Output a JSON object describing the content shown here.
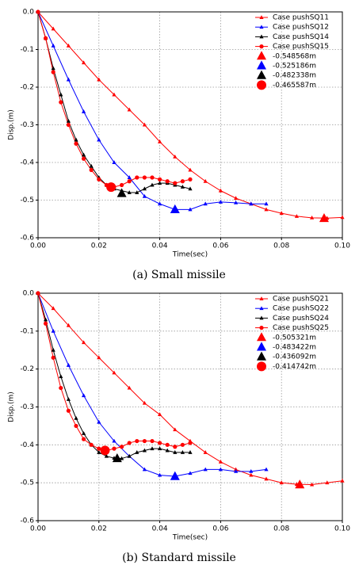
{
  "chart_data": [
    {
      "type": "line",
      "caption": "(a) Small missile",
      "xlabel": "Time(sec)",
      "ylabel": "Disp.(m)",
      "xlim": [
        0,
        0.1
      ],
      "ylim": [
        -0.6,
        0
      ],
      "xticks": [
        {
          "value": 0,
          "label": "0.00"
        },
        0.02,
        0.04,
        0.06,
        0.08,
        {
          "value": 0.1,
          "label": "0.10"
        }
      ],
      "yticks": [
        -0.6,
        -0.5,
        -0.4,
        -0.3,
        -0.2,
        -0.1,
        {
          "value": 0,
          "label": "0.0"
        }
      ],
      "grid": true,
      "legend": "upper right",
      "series": [
        {
          "name": "Case pushSQ11",
          "color": "#ff0000",
          "marker": "triangle",
          "x": [
            0,
            0.005,
            0.01,
            0.015,
            0.02,
            0.025,
            0.03,
            0.035,
            0.04,
            0.045,
            0.05,
            0.055,
            0.06,
            0.065,
            0.07,
            0.075,
            0.08,
            0.085,
            0.09,
            0.095,
            0.1
          ],
          "values": [
            0,
            -0.045,
            -0.09,
            -0.135,
            -0.18,
            -0.22,
            -0.26,
            -0.3,
            -0.345,
            -0.385,
            -0.42,
            -0.45,
            -0.475,
            -0.495,
            -0.51,
            -0.525,
            -0.535,
            -0.543,
            -0.547,
            -0.548,
            -0.546
          ]
        },
        {
          "name": "Case pushSQ12",
          "color": "#0000ff",
          "marker": "triangle",
          "x": [
            0,
            0.005,
            0.01,
            0.015,
            0.02,
            0.025,
            0.03,
            0.035,
            0.04,
            0.045,
            0.05,
            0.055,
            0.06,
            0.065,
            0.07,
            0.075
          ],
          "values": [
            0,
            -0.09,
            -0.18,
            -0.265,
            -0.34,
            -0.4,
            -0.44,
            -0.49,
            -0.51,
            -0.525,
            -0.525,
            -0.51,
            -0.505,
            -0.507,
            -0.51,
            -0.51
          ]
        },
        {
          "name": "Case pushSQ14",
          "color": "#000000",
          "marker": "triangle",
          "x": [
            0,
            0.0025,
            0.005,
            0.0075,
            0.01,
            0.0125,
            0.015,
            0.0175,
            0.02,
            0.0225,
            0.025,
            0.0275,
            0.03,
            0.0325,
            0.035,
            0.0375,
            0.04,
            0.0425,
            0.045,
            0.0475,
            0.05
          ],
          "values": [
            0,
            -0.07,
            -0.15,
            -0.22,
            -0.29,
            -0.34,
            -0.38,
            -0.41,
            -0.44,
            -0.46,
            -0.47,
            -0.475,
            -0.48,
            -0.48,
            -0.47,
            -0.46,
            -0.455,
            -0.455,
            -0.46,
            -0.465,
            -0.47
          ]
        },
        {
          "name": "Case pushSQ15",
          "color": "#ff0000",
          "marker": "circle",
          "x": [
            0,
            0.0025,
            0.005,
            0.0075,
            0.01,
            0.0125,
            0.015,
            0.0175,
            0.02,
            0.0225,
            0.025,
            0.0275,
            0.03,
            0.0325,
            0.035,
            0.0375,
            0.04,
            0.0425,
            0.045,
            0.0475,
            0.05
          ],
          "values": [
            0,
            -0.07,
            -0.16,
            -0.24,
            -0.3,
            -0.35,
            -0.39,
            -0.42,
            -0.445,
            -0.46,
            -0.465,
            -0.46,
            -0.45,
            -0.44,
            -0.44,
            -0.44,
            -0.445,
            -0.45,
            -0.455,
            -0.45,
            -0.445
          ]
        },
        {
          "name": "-0.548568m",
          "color": "#ff0000",
          "marker": "triangle",
          "linestyle": "none",
          "x": [
            0.094
          ],
          "values": [
            -0.548568
          ]
        },
        {
          "name": "-0.525186m",
          "color": "#0000ff",
          "marker": "triangle",
          "linestyle": "none",
          "x": [
            0.045
          ],
          "values": [
            -0.525186
          ]
        },
        {
          "name": "-0.482338m",
          "color": "#000000",
          "marker": "triangle",
          "linestyle": "none",
          "x": [
            0.0275
          ],
          "values": [
            -0.482338
          ]
        },
        {
          "name": "-0.465587m",
          "color": "#ff0000",
          "marker": "circle",
          "linestyle": "none",
          "x": [
            0.024
          ],
          "values": [
            -0.465587
          ]
        }
      ]
    },
    {
      "type": "line",
      "caption": "(b) Standard missile",
      "xlabel": "Time(sec)",
      "ylabel": "Disp.(m)",
      "xlim": [
        0,
        0.1
      ],
      "ylim": [
        -0.6,
        0
      ],
      "xticks": [
        {
          "value": 0,
          "label": "0.00"
        },
        0.02,
        0.04,
        0.06,
        0.08,
        {
          "value": 0.1,
          "label": "0.10"
        }
      ],
      "yticks": [
        -0.6,
        -0.5,
        -0.4,
        -0.3,
        -0.2,
        -0.1,
        {
          "value": 0,
          "label": "0.0"
        }
      ],
      "grid": true,
      "legend": "upper right",
      "series": [
        {
          "name": "Case pushSQ21",
          "color": "#ff0000",
          "marker": "triangle",
          "x": [
            0,
            0.005,
            0.01,
            0.015,
            0.02,
            0.025,
            0.03,
            0.035,
            0.04,
            0.045,
            0.05,
            0.055,
            0.06,
            0.065,
            0.07,
            0.075,
            0.08,
            0.085,
            0.09,
            0.095,
            0.1
          ],
          "values": [
            0,
            -0.04,
            -0.085,
            -0.13,
            -0.17,
            -0.21,
            -0.25,
            -0.29,
            -0.32,
            -0.36,
            -0.39,
            -0.42,
            -0.445,
            -0.465,
            -0.48,
            -0.49,
            -0.5,
            -0.504,
            -0.505,
            -0.5,
            -0.495
          ]
        },
        {
          "name": "Case pushSQ22",
          "color": "#0000ff",
          "marker": "triangle",
          "x": [
            0,
            0.005,
            0.01,
            0.015,
            0.02,
            0.025,
            0.03,
            0.035,
            0.04,
            0.045,
            0.05,
            0.055,
            0.06,
            0.065,
            0.07,
            0.075
          ],
          "values": [
            0,
            -0.1,
            -0.19,
            -0.27,
            -0.34,
            -0.39,
            -0.43,
            -0.465,
            -0.48,
            -0.483,
            -0.475,
            -0.465,
            -0.465,
            -0.47,
            -0.47,
            -0.465
          ]
        },
        {
          "name": "Case pushSQ24",
          "color": "#000000",
          "marker": "triangle",
          "x": [
            0,
            0.0025,
            0.005,
            0.0075,
            0.01,
            0.0125,
            0.015,
            0.0175,
            0.02,
            0.0225,
            0.025,
            0.0275,
            0.03,
            0.0325,
            0.035,
            0.0375,
            0.04,
            0.0425,
            0.045,
            0.0475,
            0.05
          ],
          "values": [
            0,
            -0.07,
            -0.15,
            -0.22,
            -0.28,
            -0.33,
            -0.37,
            -0.4,
            -0.42,
            -0.43,
            -0.435,
            -0.436,
            -0.43,
            -0.42,
            -0.415,
            -0.41,
            -0.41,
            -0.415,
            -0.42,
            -0.42,
            -0.42
          ]
        },
        {
          "name": "Case pushSQ25",
          "color": "#ff0000",
          "marker": "circle",
          "x": [
            0,
            0.0025,
            0.005,
            0.0075,
            0.01,
            0.0125,
            0.015,
            0.0175,
            0.02,
            0.0225,
            0.025,
            0.0275,
            0.03,
            0.0325,
            0.035,
            0.0375,
            0.04,
            0.0425,
            0.045,
            0.0475,
            0.05
          ],
          "values": [
            0,
            -0.08,
            -0.17,
            -0.25,
            -0.31,
            -0.35,
            -0.385,
            -0.4,
            -0.41,
            -0.415,
            -0.41,
            -0.405,
            -0.395,
            -0.39,
            -0.39,
            -0.39,
            -0.395,
            -0.4,
            -0.405,
            -0.4,
            -0.395
          ]
        },
        {
          "name": "-0.505321m",
          "color": "#ff0000",
          "marker": "triangle",
          "linestyle": "none",
          "x": [
            0.086
          ],
          "values": [
            -0.505321
          ]
        },
        {
          "name": "-0.483422m",
          "color": "#0000ff",
          "marker": "triangle",
          "linestyle": "none",
          "x": [
            0.045
          ],
          "values": [
            -0.483422
          ]
        },
        {
          "name": "-0.436092m",
          "color": "#000000",
          "marker": "triangle",
          "linestyle": "none",
          "x": [
            0.026
          ],
          "values": [
            -0.436092
          ]
        },
        {
          "name": "-0.414742m",
          "color": "#ff0000",
          "marker": "circle",
          "linestyle": "none",
          "x": [
            0.022
          ],
          "values": [
            -0.414742
          ]
        }
      ]
    }
  ]
}
